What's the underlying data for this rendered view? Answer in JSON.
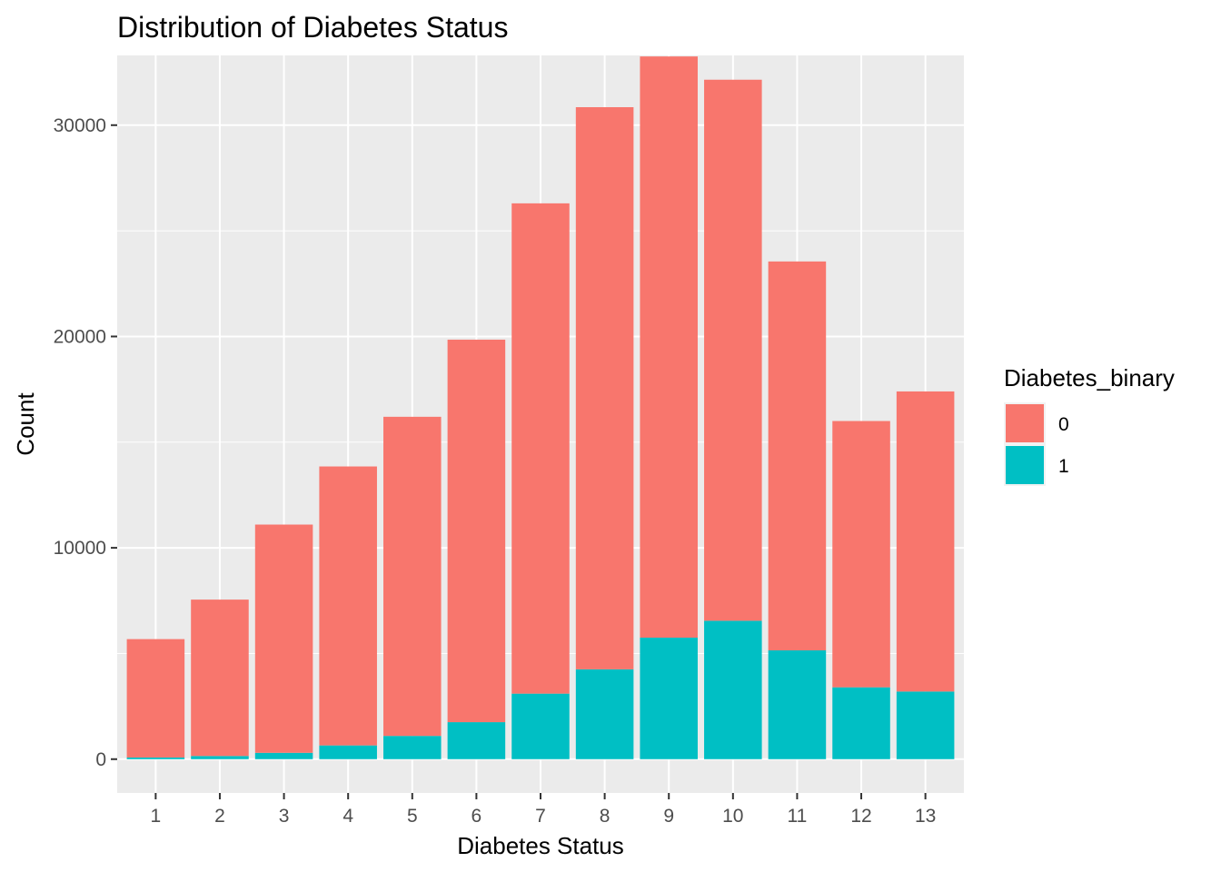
{
  "chart_data": {
    "type": "bar",
    "stacked": true,
    "title": "Distribution of Diabetes Status",
    "xlabel": "Diabetes Status",
    "ylabel": "Count",
    "categories": [
      "1",
      "2",
      "3",
      "4",
      "5",
      "6",
      "7",
      "8",
      "9",
      "10",
      "11",
      "12",
      "13"
    ],
    "series": [
      {
        "name": "0",
        "color": "#F8766D",
        "values": [
          5600,
          7400,
          10800,
          13200,
          15100,
          18100,
          23200,
          26600,
          27500,
          25600,
          18400,
          12600,
          14200
        ]
      },
      {
        "name": "1",
        "color": "#00BFC4",
        "values": [
          80,
          150,
          300,
          650,
          1100,
          1750,
          3100,
          4250,
          5750,
          6550,
          5150,
          3400,
          3200
        ]
      }
    ],
    "ylim": [
      -1600,
      33300
    ],
    "yticks": [
      0,
      10000,
      20000,
      30000
    ],
    "ytick_labels": [
      "0",
      "10000",
      "20000",
      "30000"
    ],
    "legend": {
      "title": "Diabetes_binary",
      "position": "right"
    },
    "grid": true,
    "panel_background": "#EBEBEB"
  }
}
